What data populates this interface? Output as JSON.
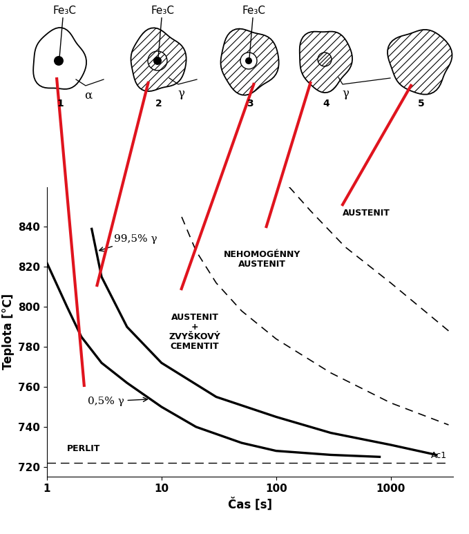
{
  "chart_data": {
    "type": "line",
    "xlabel": "Čas [s]",
    "ylabel": "Teplota [°C]",
    "log": "x",
    "grid": false,
    "xlim": [
      1,
      3500
    ],
    "xticks": [
      1,
      10,
      100,
      1000
    ],
    "ylim": [
      715,
      860
    ],
    "yticks": [
      720,
      740,
      760,
      780,
      800,
      820,
      840
    ],
    "series": [
      {
        "name": "0,5% γ",
        "color": "#000000",
        "line_style": "solid",
        "x": [
          1,
          1.5,
          2,
          3,
          5,
          10,
          20,
          50,
          100,
          300,
          800
        ],
        "values": [
          822,
          800,
          785,
          772,
          762,
          750,
          740,
          732,
          728,
          726,
          725
        ]
      },
      {
        "name": "99,5% γ",
        "color": "#000000",
        "line_style": "solid",
        "x": [
          2.46,
          3,
          5,
          10,
          30,
          100,
          300,
          1000,
          2500
        ],
        "values": [
          839,
          815,
          790,
          772,
          755,
          745,
          737,
          731,
          726
        ]
      },
      {
        "color": "#000000",
        "line_style": "dashed",
        "x": [
          15,
          20,
          30,
          50,
          100,
          300,
          1000,
          3200
        ],
        "values": [
          845,
          828,
          812,
          798,
          784,
          767,
          752,
          741
        ]
      },
      {
        "color": "#000000",
        "line_style": "dashed",
        "x": [
          130,
          200,
          400,
          1000,
          3200
        ],
        "values": [
          860,
          848,
          830,
          812,
          788
        ]
      }
    ],
    "reference_line": {
      "label": "Ac1",
      "value": 722,
      "color": "#000000",
      "line_style": "dashed"
    },
    "annotations": [
      "PERLIT",
      "AUSTENIT\n+\nZVYŠKOVÝ\nCEMENTIT",
      "NEHOMOGÉNNY\nAUSTENIT",
      "AUSTENIT"
    ]
  },
  "schematic": {
    "stages": [
      {
        "number": "1",
        "label": "Fe₃C"
      },
      {
        "number": "2",
        "label": "Fe₃C"
      },
      {
        "number": "3",
        "label": "Fe₃C"
      },
      {
        "number": "4"
      },
      {
        "number": "5"
      }
    ],
    "phase_labels": [
      "α",
      "γ",
      "γ"
    ]
  }
}
